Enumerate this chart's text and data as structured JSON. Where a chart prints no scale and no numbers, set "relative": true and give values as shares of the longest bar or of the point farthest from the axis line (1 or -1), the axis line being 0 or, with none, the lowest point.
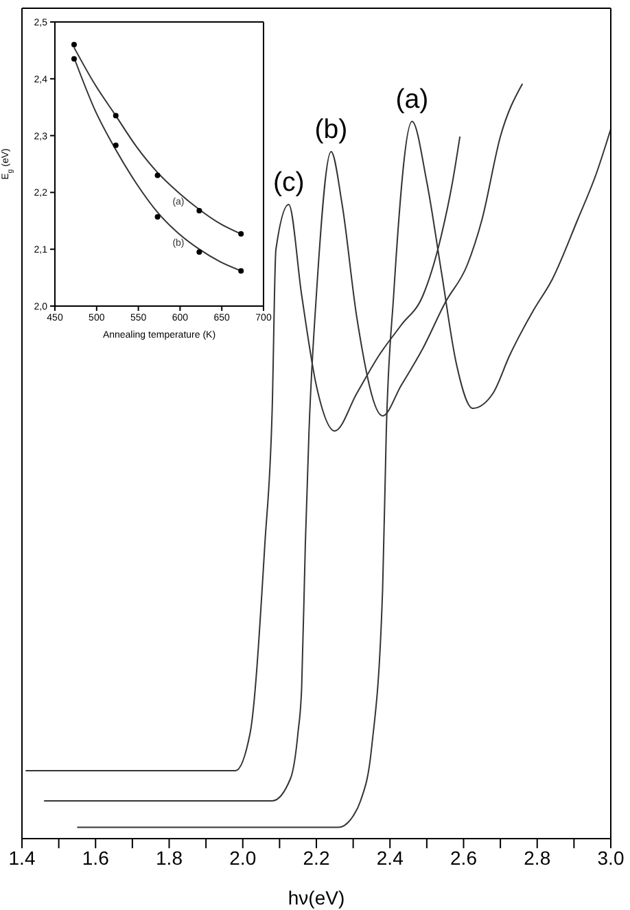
{
  "chart_data": [
    {
      "type": "line",
      "xlabel": "hν(eV)",
      "relative": true,
      "marker": "none",
      "xlim": [
        1.4,
        3.0
      ],
      "xticks": [
        1.4,
        {
          "value": 1.5,
          "label": null
        },
        1.6,
        {
          "value": 1.7,
          "label": null
        },
        1.8,
        {
          "value": 1.9,
          "label": null
        },
        {
          "value": 2.0,
          "label": "2.0"
        },
        {
          "value": 2.1,
          "label": null
        },
        2.2,
        {
          "value": 2.3,
          "label": null
        },
        2.4,
        {
          "value": 2.5,
          "label": null
        },
        2.6,
        {
          "value": 2.7,
          "label": null
        },
        2.8,
        {
          "value": 2.9,
          "label": null
        },
        {
          "value": 3.0,
          "label": "3.0"
        }
      ],
      "series": [
        {
          "name": "(a)",
          "color": "#333333",
          "x": [
            1.55,
            1.9,
            2.26,
            2.3,
            2.32,
            2.35,
            2.38,
            2.39,
            2.41,
            2.46,
            2.5,
            2.54,
            2.58,
            2.625,
            2.68,
            2.725,
            2.79,
            2.84,
            2.91,
            2.96,
            3.0
          ],
          "values": [
            0.015,
            0.015,
            0.015,
            0.03,
            0.05,
            0.12,
            0.33,
            0.54,
            0.72,
            0.95,
            0.87,
            0.75,
            0.63,
            0.57,
            0.59,
            0.64,
            0.7,
            0.74,
            0.82,
            0.88,
            0.94
          ]
        },
        {
          "name": "(b)",
          "color": "#333333",
          "x": [
            1.46,
            1.8,
            2.07,
            2.08,
            2.13,
            2.15,
            2.16,
            2.17,
            2.18,
            2.2,
            2.24,
            2.27,
            2.31,
            2.38,
            2.43,
            2.49,
            2.55,
            2.61,
            2.65,
            2.7,
            2.76
          ],
          "values": [
            0.05,
            0.05,
            0.05,
            0.05,
            0.08,
            0.14,
            0.2,
            0.39,
            0.54,
            0.72,
            0.91,
            0.84,
            0.69,
            0.56,
            0.6,
            0.65,
            0.71,
            0.76,
            0.82,
            0.93,
            1.0
          ]
        },
        {
          "name": "(c)",
          "color": "#333333",
          "x": [
            1.41,
            1.55,
            1.8,
            1.95,
            1.98,
            2.02,
            2.06,
            2.08,
            2.09,
            2.125,
            2.16,
            2.2,
            2.25,
            2.31,
            2.37,
            2.43,
            2.49,
            2.54,
            2.57,
            2.59
          ],
          "values": [
            0.09,
            0.09,
            0.09,
            0.09,
            0.09,
            0.14,
            0.39,
            0.57,
            0.78,
            0.84,
            0.72,
            0.6,
            0.54,
            0.59,
            0.64,
            0.68,
            0.72,
            0.8,
            0.87,
            0.93
          ]
        }
      ]
    },
    {
      "type": "scatter",
      "xlabel": "Annealing temperature (K)",
      "ylabel": "E$_{g}$ (eV)",
      "marker": "circle",
      "xlim": [
        450,
        700
      ],
      "xticks": [
        450,
        500,
        550,
        600,
        650,
        700
      ],
      "ylim": [
        2.0,
        2.5
      ],
      "yticks": [
        {
          "value": 2.0,
          "label": "2,0"
        },
        {
          "value": 2.1,
          "label": "2,1"
        },
        {
          "value": 2.2,
          "label": "2,2"
        },
        {
          "value": 2.3,
          "label": "2,3"
        },
        {
          "value": 2.4,
          "label": "2,4"
        },
        {
          "value": 2.5,
          "label": "2,5"
        }
      ],
      "series": [
        {
          "color": "#000000",
          "x": [
            473,
            523,
            573,
            623,
            673
          ],
          "values": [
            2.46,
            2.335,
            2.23,
            2.168,
            2.127
          ]
        },
        {
          "color": "#000000",
          "x": [
            473,
            523,
            573,
            623,
            673
          ],
          "values": [
            2.435,
            2.283,
            2.157,
            2.095,
            2.062
          ]
        },
        {
          "type": "line",
          "marker": "none",
          "color": "#333333",
          "x": [
            473,
            498,
            523,
            548,
            573,
            598,
            623,
            648,
            673
          ],
          "values": [
            2.455,
            2.39,
            2.335,
            2.28,
            2.235,
            2.2,
            2.17,
            2.145,
            2.127
          ]
        },
        {
          "type": "line",
          "marker": "none",
          "color": "#333333",
          "x": [
            473,
            498,
            523,
            548,
            573,
            598,
            623,
            648,
            673
          ],
          "values": [
            2.437,
            2.345,
            2.275,
            2.215,
            2.165,
            2.128,
            2.1,
            2.078,
            2.062
          ]
        }
      ],
      "annotations": [
        {
          "text": "(a)",
          "x": 598,
          "y": 2.2
        },
        {
          "text": "(b)",
          "x": 598,
          "y": 2.128
        }
      ]
    }
  ]
}
